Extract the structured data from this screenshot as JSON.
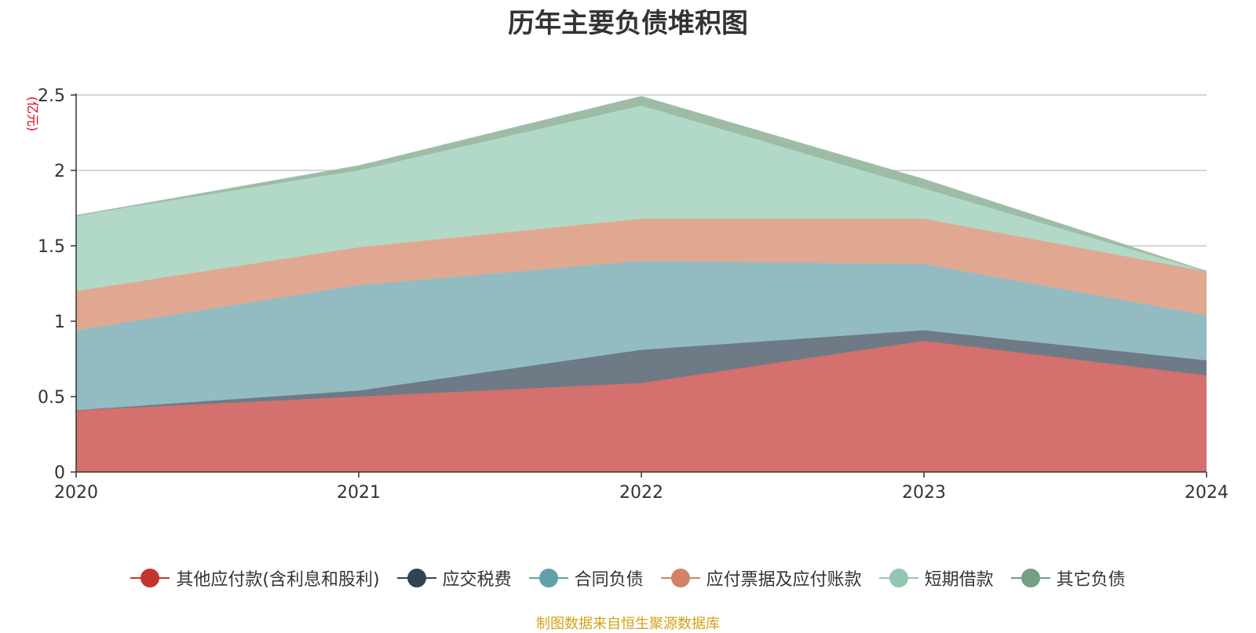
{
  "title": "历年主要负债堆积图",
  "source": "制图数据来自恒生聚源数据库",
  "chart_data": {
    "type": "area",
    "stacked": true,
    "title": "历年主要负债堆积图",
    "ylabel": "(亿元)",
    "ylim": [
      0,
      2.5
    ],
    "yticks": [
      "0",
      "0.5",
      "1",
      "1.5",
      "2",
      "2.5"
    ],
    "categories": [
      "2020",
      "2021",
      "2022",
      "2023",
      "2024"
    ],
    "grid": true,
    "legend_position": "bottom",
    "series": [
      {
        "name": "其他应付款(含利息和股利)",
        "color": "#c23531",
        "fill": "#d4706d",
        "values": [
          0.41,
          0.5,
          0.59,
          0.87,
          0.64
        ]
      },
      {
        "name": "应交税费",
        "color": "#2f4554",
        "fill": "#6e7a85",
        "values": [
          0.0,
          0.04,
          0.22,
          0.07,
          0.1
        ]
      },
      {
        "name": "合同负债",
        "color": "#61a0a8",
        "fill": "#92bcc2",
        "values": [
          0.53,
          0.7,
          0.59,
          0.44,
          0.3
        ]
      },
      {
        "name": "应付票据及应付账款",
        "color": "#d48265",
        "fill": "#e1a891",
        "values": [
          0.26,
          0.25,
          0.28,
          0.3,
          0.29
        ]
      },
      {
        "name": "短期借款",
        "color": "#91c7ae",
        "fill": "#b2d9c7",
        "values": [
          0.5,
          0.51,
          0.75,
          0.2,
          0.0
        ]
      },
      {
        "name": "其它负债",
        "color": "#749f83",
        "fill": "#9dbca6",
        "values": [
          0.0,
          0.03,
          0.06,
          0.06,
          0.0
        ]
      }
    ]
  }
}
